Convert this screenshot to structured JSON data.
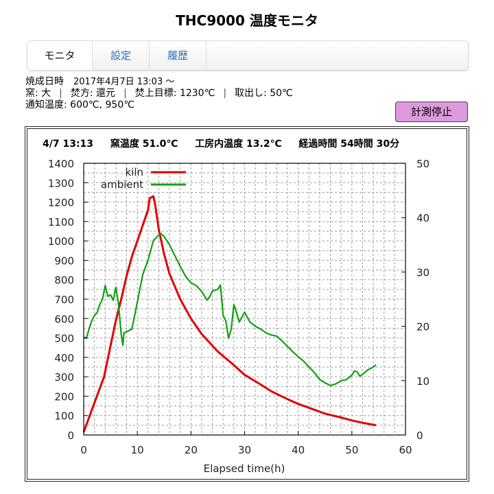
{
  "header": {
    "title": "THC9000 温度モニタ"
  },
  "tabs": [
    {
      "label": "モニタ",
      "active": true
    },
    {
      "label": "設定",
      "active": false
    },
    {
      "label": "履歴",
      "active": false
    }
  ],
  "firing_info": {
    "start_label": "焼成日時",
    "start_value": "2017年4月7日 13:03 ～",
    "kiln_label": "窯: 大",
    "method_label": "焚方: 還元",
    "target_label": "焚上目標: 1230℃",
    "removal_label": "取出し: 50℃",
    "notify_label": "通知温度: 600℃, 950℃"
  },
  "buttons": {
    "stop_measure": "計測停止"
  },
  "status": {
    "datetime": "4/7 13:13",
    "kiln_temp": "窯温度 51.0℃",
    "room_temp": "工房内温度 13.2℃",
    "elapsed": "経過時間 54時間 30分"
  },
  "colors": {
    "kiln": "#e00000",
    "ambient": "#10a010",
    "stop_button": "#dd99dd",
    "tab_link": "#2a6bb3"
  },
  "chart_data": {
    "type": "line",
    "title": "",
    "xlabel": "Elapsed time(h)",
    "ylabel": "",
    "y2label": "",
    "xlim": [
      0,
      60
    ],
    "ylim": [
      0,
      1400
    ],
    "y2lim": [
      0,
      50
    ],
    "xticks": [
      0,
      10,
      20,
      30,
      40,
      50,
      60
    ],
    "yticks": [
      0,
      100,
      200,
      300,
      400,
      500,
      600,
      700,
      800,
      900,
      1000,
      1100,
      1200,
      1300,
      1400
    ],
    "y2ticks": [
      0,
      10,
      20,
      30,
      40,
      50
    ],
    "grid": true,
    "legend_position": "top-left",
    "series": [
      {
        "name": "kiln",
        "axis": "left",
        "color": "#e00000",
        "x": [
          0,
          1,
          2,
          3,
          3.8,
          5,
          6,
          7,
          8,
          9,
          10,
          11,
          12,
          12.3,
          13,
          13.3,
          14,
          15,
          16,
          18,
          20,
          22,
          25,
          28,
          30,
          33,
          35,
          38,
          40,
          43,
          45,
          48,
          50,
          52,
          54.5
        ],
        "values": [
          15,
          90,
          165,
          240,
          300,
          460,
          590,
          700,
          820,
          920,
          1000,
          1080,
          1160,
          1220,
          1230,
          1190,
          1060,
          930,
          830,
          700,
          600,
          520,
          430,
          360,
          310,
          260,
          225,
          185,
          160,
          130,
          110,
          90,
          75,
          63,
          50
        ]
      },
      {
        "name": "ambient",
        "axis": "right",
        "color": "#10a010",
        "x": [
          0,
          0.5,
          1,
          1.5,
          2,
          2.5,
          3,
          3.5,
          4,
          4.5,
          5,
          5.5,
          6,
          6.5,
          7,
          7.3,
          7.5,
          8,
          9,
          10,
          11,
          12,
          13,
          14,
          14.5,
          15,
          16,
          17,
          18,
          19,
          20,
          21,
          22,
          23,
          23.5,
          24,
          25,
          25.5,
          26,
          26.5,
          27,
          27.5,
          28,
          28.5,
          29,
          30,
          31,
          32,
          33,
          34,
          35,
          36,
          37,
          38,
          39,
          40,
          41,
          42,
          43,
          44,
          45,
          46,
          47,
          48,
          49,
          50,
          50.5,
          51,
          51.5,
          52,
          53,
          54,
          54.5
        ],
        "values": [
          18,
          17.8,
          19.5,
          21,
          22,
          22.5,
          24,
          25,
          27.5,
          25.5,
          25.8,
          24.8,
          27.2,
          24,
          18.5,
          16.5,
          18.8,
          19,
          19.5,
          24.5,
          29.5,
          32.2,
          35.8,
          36.8,
          37,
          36.5,
          35,
          33,
          31,
          29.2,
          28,
          27.5,
          26.4,
          24.8,
          25.5,
          26.5,
          26.8,
          27.6,
          22,
          21,
          17.8,
          19.5,
          24,
          22.5,
          20.8,
          22.6,
          20.8,
          20,
          19.5,
          18.8,
          18.4,
          18.2,
          17.3,
          16.3,
          15.3,
          14.4,
          13.6,
          12.5,
          11.5,
          10.2,
          9.6,
          9.1,
          9.4,
          10,
          10.2,
          11,
          11.8,
          11.6,
          10.8,
          11.2,
          12,
          12.5,
          12.9
        ]
      }
    ]
  }
}
